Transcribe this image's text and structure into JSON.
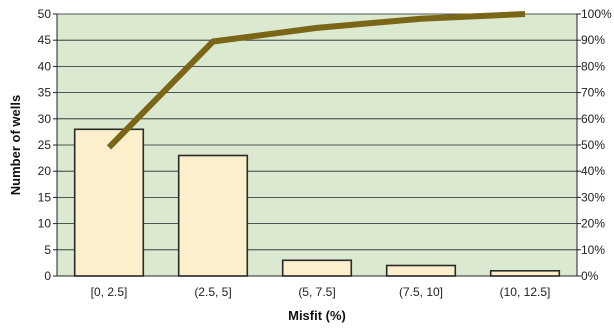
{
  "chart_data": {
    "type": "bar",
    "title": "",
    "xlabel": "Misfit (%)",
    "ylabel": "Number of wells",
    "categories": [
      "[0, 2.5]",
      "(2.5, 5]",
      "(5, 7.5]",
      "(7.5, 10]",
      "(10, 12.5]"
    ],
    "series": [
      {
        "type": "bar",
        "values": [
          28,
          23,
          3,
          2,
          1
        ]
      },
      {
        "type": "line",
        "axis": "secondary",
        "values": [
          49.1,
          89.5,
          94.7,
          98.2,
          100
        ]
      }
    ],
    "ylim": [
      0,
      50
    ],
    "yticks": [
      "0",
      "5",
      "10",
      "15",
      "20",
      "25",
      "30",
      "35",
      "40",
      "45",
      "50"
    ],
    "y2lim": [
      0,
      100
    ],
    "y2ticks": [
      "0%",
      "10%",
      "20%",
      "30%",
      "40%",
      "50%",
      "60%",
      "70%",
      "80%",
      "90%",
      "100%"
    ],
    "grid": true,
    "legend": "none",
    "colors": {
      "plot_background": "#dbe9d0",
      "gridline": "#222222",
      "bar_fill": "#fbefcc",
      "bar_stroke": "#2a2a2a",
      "line": "#7a6616"
    }
  }
}
